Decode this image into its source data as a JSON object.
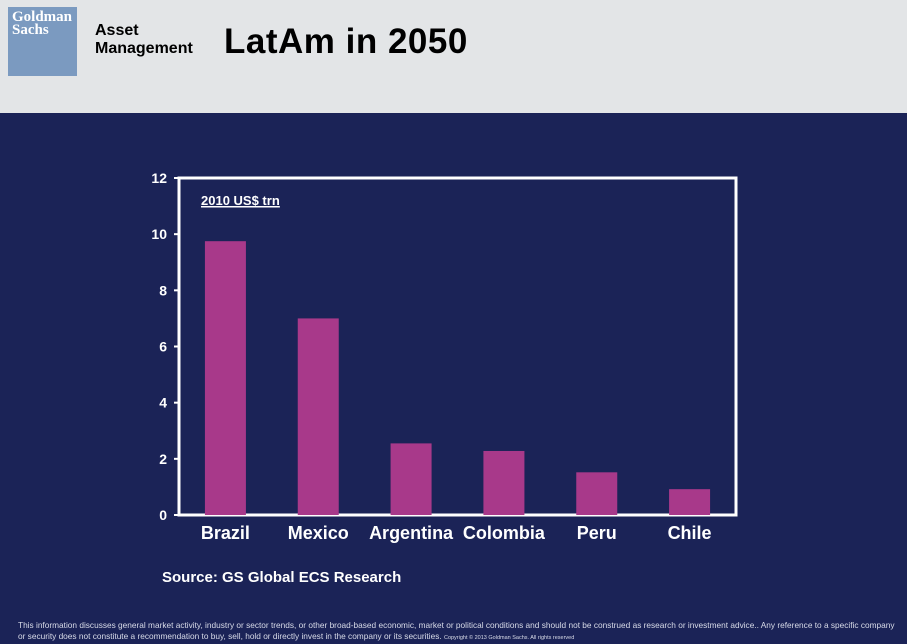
{
  "header": {
    "logo_line1": "Goldman",
    "logo_line2": "Sachs",
    "brand_line1": "Asset",
    "brand_line2": "Management",
    "title": "LatAm in 2050"
  },
  "colors": {
    "background": "#1b2357",
    "header": "#e3e5e7",
    "logo": "#7b9ac0",
    "bar": "#a8398a",
    "axis": "#ffffff"
  },
  "chart_data": {
    "type": "bar",
    "categories": [
      "Brazil",
      "Mexico",
      "Argentina",
      "Colombia",
      "Peru",
      "Chile"
    ],
    "values": [
      9.75,
      7.0,
      2.55,
      2.28,
      1.52,
      0.92
    ],
    "annotation": "2010 US$ trn",
    "xlabel": "",
    "ylabel": "",
    "ylim": [
      0,
      12
    ],
    "yticks": [
      "0",
      "2",
      "4",
      "6",
      "8",
      "10",
      "12"
    ],
    "grid": false,
    "legend": "none"
  },
  "footer": {
    "source": "Source: GS Global ECS Research",
    "disclaimer": "This information discusses general market activity, industry or sector trends, or other broad-based economic, market or political conditions and should not be construed as research or investment advice.. Any reference to a specific company or security does not constitute a recommendation to buy, sell, hold or directly invest in the company or its securities.",
    "copyright": "Copyright © 2013 Goldman Sachs. All rights reserved"
  }
}
